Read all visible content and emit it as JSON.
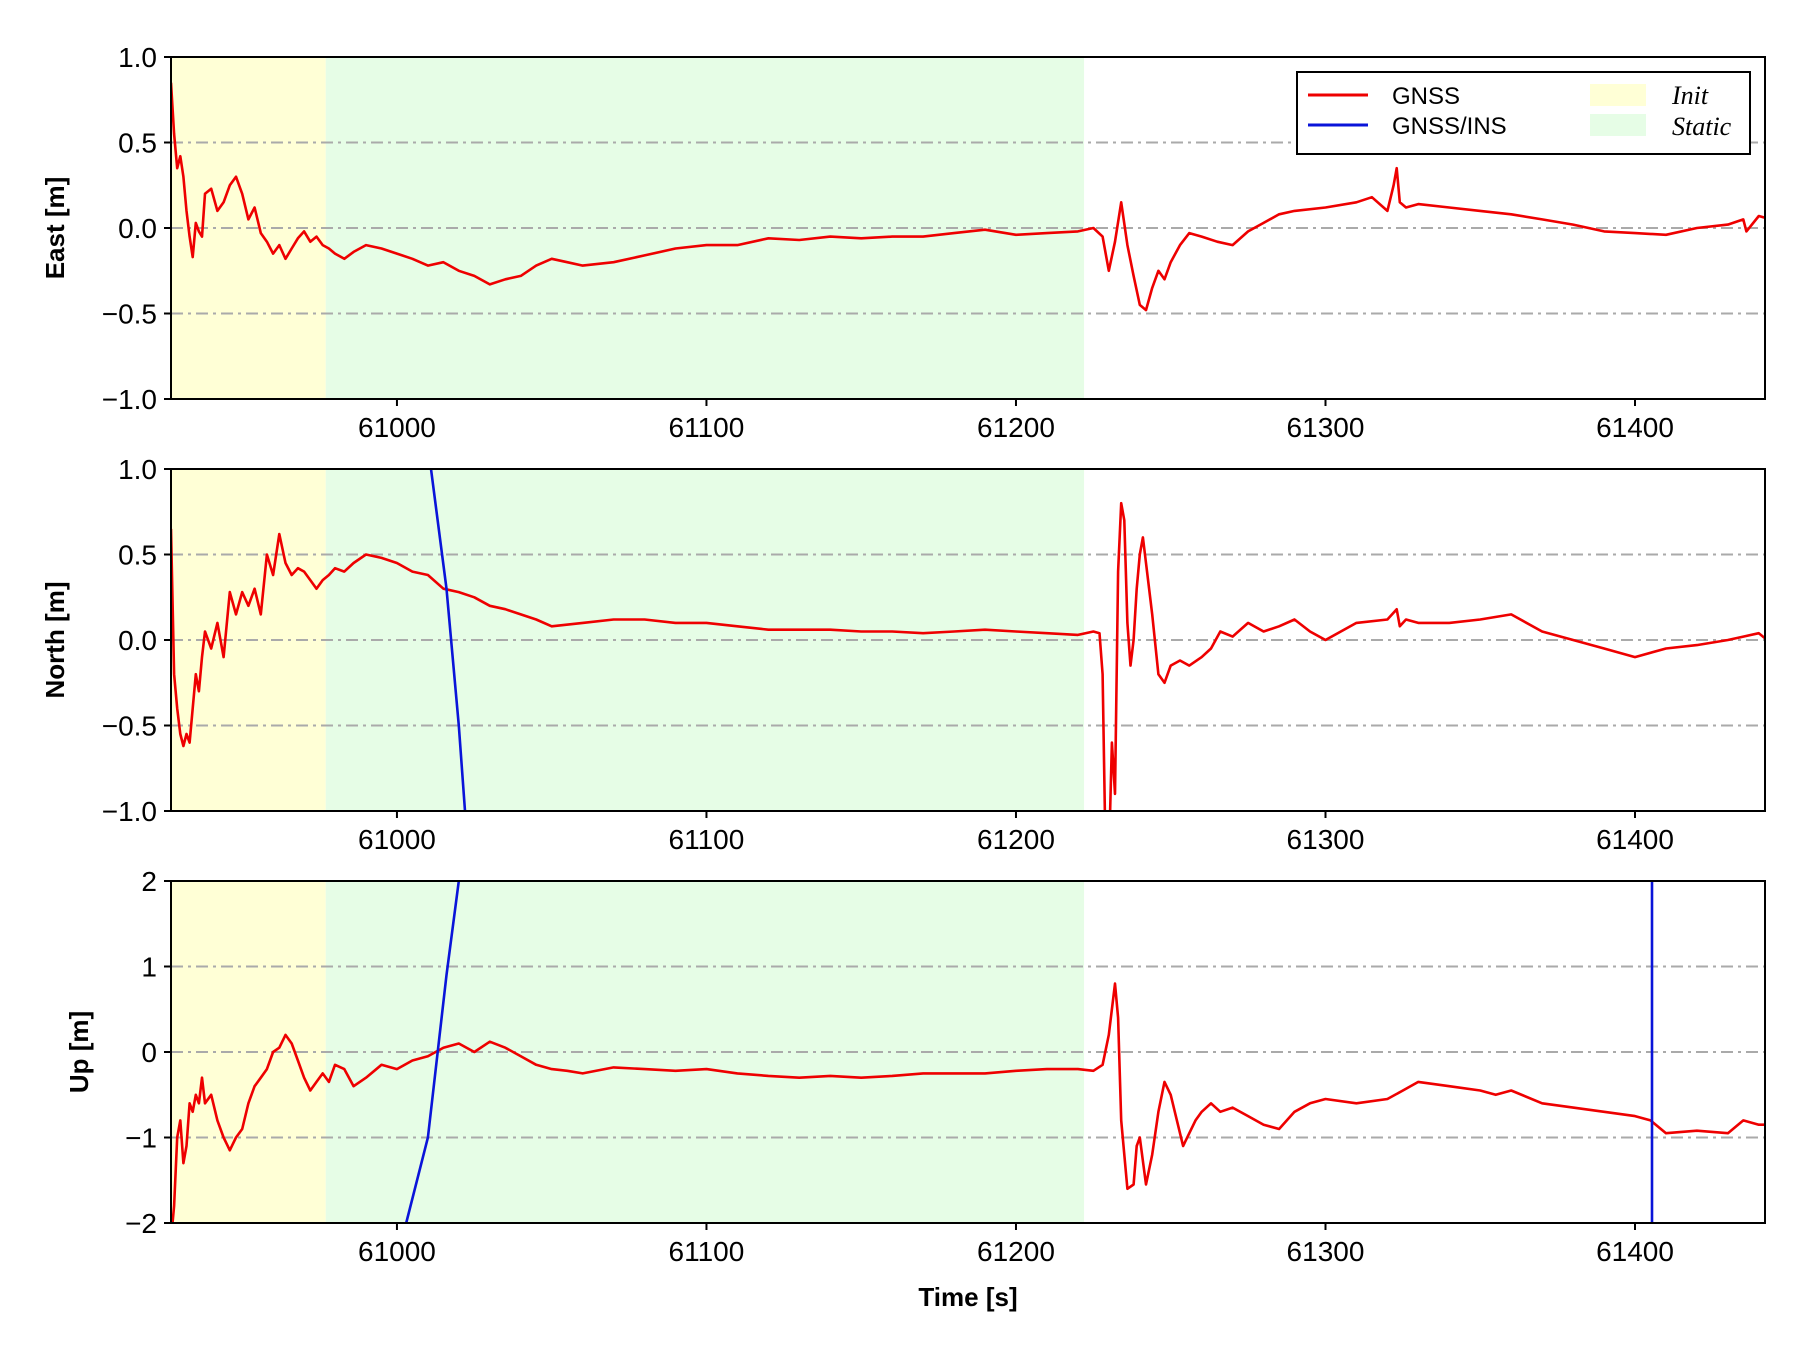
{
  "chart_data": {
    "type": "line",
    "xlabel": "Time [s]",
    "xlim": [
      60927,
      61442
    ],
    "xticks": [
      61000,
      61100,
      61200,
      61300,
      61400
    ],
    "regions": [
      {
        "name": "Init",
        "x": [
          60927,
          60977
        ],
        "color": "#ffffd6"
      },
      {
        "name": "Static",
        "x": [
          60977,
          61222
        ],
        "color": "#e6fde6"
      }
    ],
    "legend": {
      "position": "top-right",
      "entries": [
        {
          "label": "GNSS",
          "kind": "line",
          "color": "#ee0000"
        },
        {
          "label": "GNSS/INS",
          "kind": "line",
          "color": "#0a14d9"
        },
        {
          "label": "Init",
          "kind": "patch",
          "color": "#ffffd6"
        },
        {
          "label": "Static",
          "kind": "patch",
          "color": "#e6fde6"
        }
      ]
    },
    "grid": "horizontal dash-dot",
    "panels": [
      {
        "ylabel": "East [m]",
        "ylim": [
          -1.0,
          1.0
        ],
        "yticks": [
          1.0,
          0.5,
          0.0,
          -0.5,
          -1.0
        ],
        "ytick_labels": [
          "1.0",
          "0.5",
          "0.0",
          "−0.5",
          "−1.0"
        ],
        "gridlines": [
          0.5,
          0.0,
          -0.5
        ],
        "series": [
          {
            "name": "GNSS",
            "color": "#ee0000",
            "x": [
              60927,
              60928,
              60929,
              60930,
              60931,
              60932,
              60933,
              60934,
              60935,
              60936,
              60937,
              60938,
              60940,
              60942,
              60944,
              60946,
              60948,
              60950,
              60952,
              60954,
              60956,
              60958,
              60960,
              60962,
              60964,
              60966,
              60968,
              60970,
              60972,
              60974,
              60976,
              60978,
              60980,
              60983,
              60986,
              60990,
              60995,
              61000,
              61005,
              61010,
              61015,
              61020,
              61025,
              61030,
              61035,
              61040,
              61045,
              61050,
              61055,
              61060,
              61070,
              61080,
              61090,
              61100,
              61110,
              61120,
              61130,
              61140,
              61150,
              61160,
              61170,
              61180,
              61190,
              61200,
              61210,
              61220,
              61225,
              61228,
              61230,
              61232,
              61234,
              61236,
              61238,
              61240,
              61242,
              61244,
              61246,
              61248,
              61250,
              61253,
              61256,
              61260,
              61265,
              61270,
              61275,
              61280,
              61285,
              61290,
              61300,
              61310,
              61315,
              61320,
              61322,
              61323,
              61324,
              61326,
              61330,
              61340,
              61350,
              61360,
              61370,
              61380,
              61390,
              61400,
              61410,
              61420,
              61430,
              61435,
              61436,
              61440,
              61442
            ],
            "y": [
              0.85,
              0.55,
              0.35,
              0.42,
              0.3,
              0.1,
              -0.05,
              -0.17,
              0.03,
              -0.02,
              -0.05,
              0.2,
              0.23,
              0.1,
              0.15,
              0.25,
              0.3,
              0.2,
              0.05,
              0.12,
              -0.03,
              -0.08,
              -0.15,
              -0.1,
              -0.18,
              -0.12,
              -0.06,
              -0.02,
              -0.08,
              -0.05,
              -0.1,
              -0.12,
              -0.15,
              -0.18,
              -0.14,
              -0.1,
              -0.12,
              -0.15,
              -0.18,
              -0.22,
              -0.2,
              -0.25,
              -0.28,
              -0.33,
              -0.3,
              -0.28,
              -0.22,
              -0.18,
              -0.2,
              -0.22,
              -0.2,
              -0.16,
              -0.12,
              -0.1,
              -0.1,
              -0.06,
              -0.07,
              -0.05,
              -0.06,
              -0.05,
              -0.05,
              -0.03,
              -0.01,
              -0.04,
              -0.03,
              -0.02,
              0.0,
              -0.05,
              -0.25,
              -0.08,
              0.15,
              -0.1,
              -0.28,
              -0.45,
              -0.48,
              -0.35,
              -0.25,
              -0.3,
              -0.2,
              -0.1,
              -0.03,
              -0.05,
              -0.08,
              -0.1,
              -0.02,
              0.03,
              0.08,
              0.1,
              0.12,
              0.15,
              0.18,
              0.1,
              0.25,
              0.35,
              0.15,
              0.12,
              0.14,
              0.12,
              0.1,
              0.08,
              0.05,
              0.02,
              -0.02,
              -0.03,
              -0.04,
              0.0,
              0.02,
              0.05,
              -0.02,
              0.07,
              0.06
            ]
          }
        ]
      },
      {
        "ylabel": "North [m]",
        "ylim": [
          -1.0,
          1.0
        ],
        "yticks": [
          1.0,
          0.5,
          0.0,
          -0.5,
          -1.0
        ],
        "ytick_labels": [
          "1.0",
          "0.5",
          "0.0",
          "−0.5",
          "−1.0"
        ],
        "gridlines": [
          0.5,
          0.0,
          -0.5
        ],
        "series": [
          {
            "name": "GNSS",
            "color": "#ee0000",
            "x": [
              60927,
              60928,
              60929,
              60930,
              60931,
              60932,
              60933,
              60934,
              60935,
              60936,
              60937,
              60938,
              60940,
              60942,
              60944,
              60946,
              60948,
              60950,
              60952,
              60954,
              60956,
              60958,
              60960,
              60962,
              60964,
              60966,
              60968,
              60970,
              60972,
              60974,
              60976,
              60978,
              60980,
              60983,
              60986,
              60990,
              60995,
              61000,
              61005,
              61010,
              61015,
              61020,
              61025,
              61030,
              61035,
              61040,
              61045,
              61050,
              61060,
              61070,
              61080,
              61090,
              61100,
              61110,
              61120,
              61130,
              61140,
              61150,
              61160,
              61170,
              61180,
              61190,
              61200,
              61210,
              61220,
              61225,
              61227,
              61228,
              61229,
              61230,
              61231,
              61232,
              61233,
              61234,
              61235,
              61236,
              61237,
              61238,
              61239,
              61240,
              61241,
              61242,
              61243,
              61244,
              61246,
              61248,
              61250,
              61253,
              61256,
              61260,
              61263,
              61266,
              61270,
              61275,
              61280,
              61285,
              61290,
              61295,
              61300,
              61310,
              61320,
              61323,
              61324,
              61326,
              61330,
              61340,
              61350,
              61360,
              61370,
              61380,
              61390,
              61400,
              61410,
              61420,
              61430,
              61435,
              61440,
              61442
            ],
            "y": [
              0.65,
              -0.2,
              -0.4,
              -0.55,
              -0.62,
              -0.55,
              -0.6,
              -0.4,
              -0.2,
              -0.3,
              -0.1,
              0.05,
              -0.05,
              0.1,
              -0.1,
              0.28,
              0.15,
              0.28,
              0.2,
              0.3,
              0.15,
              0.5,
              0.38,
              0.62,
              0.45,
              0.38,
              0.42,
              0.4,
              0.35,
              0.3,
              0.35,
              0.38,
              0.42,
              0.4,
              0.45,
              0.5,
              0.48,
              0.45,
              0.4,
              0.38,
              0.3,
              0.28,
              0.25,
              0.2,
              0.18,
              0.15,
              0.12,
              0.08,
              0.1,
              0.12,
              0.12,
              0.1,
              0.1,
              0.08,
              0.06,
              0.06,
              0.06,
              0.05,
              0.05,
              0.04,
              0.05,
              0.06,
              0.05,
              0.04,
              0.03,
              0.05,
              0.04,
              -0.2,
              -1.3,
              -1.3,
              -0.6,
              -0.9,
              0.4,
              0.8,
              0.7,
              0.1,
              -0.15,
              0.0,
              0.3,
              0.5,
              0.6,
              0.45,
              0.3,
              0.15,
              -0.2,
              -0.25,
              -0.15,
              -0.12,
              -0.15,
              -0.1,
              -0.05,
              0.05,
              0.02,
              0.1,
              0.05,
              0.08,
              0.12,
              0.05,
              0.0,
              0.1,
              0.12,
              0.18,
              0.08,
              0.12,
              0.1,
              0.1,
              0.12,
              0.15,
              0.05,
              0.0,
              -0.05,
              -0.1,
              -0.05,
              -0.03,
              0.0,
              0.02,
              0.04,
              0.01
            ]
          },
          {
            "name": "GNSS/INS",
            "color": "#0a14d9",
            "x": [
              61011,
              61016,
              61020,
              61022
            ],
            "y": [
              1.0,
              0.3,
              -0.5,
              -1.0
            ]
          }
        ]
      },
      {
        "ylabel": "Up [m]",
        "ylim": [
          -2,
          2
        ],
        "yticks": [
          2,
          1,
          0,
          -1,
          -2
        ],
        "ytick_labels": [
          "2",
          "1",
          "0",
          "−1",
          "−2"
        ],
        "gridlines": [
          1,
          0,
          -1
        ],
        "series": [
          {
            "name": "GNSS",
            "color": "#ee0000",
            "x": [
              60927,
              60928,
              60929,
              60930,
              60931,
              60932,
              60933,
              60934,
              60935,
              60936,
              60937,
              60938,
              60940,
              60942,
              60944,
              60946,
              60948,
              60950,
              60952,
              60954,
              60956,
              60958,
              60960,
              60962,
              60964,
              60966,
              60968,
              60970,
              60972,
              60974,
              60976,
              60978,
              60980,
              60983,
              60986,
              60990,
              60995,
              61000,
              61005,
              61010,
              61015,
              61020,
              61025,
              61030,
              61035,
              61040,
              61045,
              61050,
              61055,
              61060,
              61070,
              61080,
              61090,
              61100,
              61110,
              61120,
              61130,
              61140,
              61150,
              61160,
              61170,
              61180,
              61190,
              61200,
              61210,
              61220,
              61225,
              61228,
              61230,
              61232,
              61233,
              61234,
              61236,
              61238,
              61239,
              61240,
              61242,
              61244,
              61246,
              61248,
              61250,
              61252,
              61254,
              61256,
              61258,
              61260,
              61263,
              61266,
              61270,
              61275,
              61280,
              61285,
              61290,
              61295,
              61300,
              61310,
              61320,
              61325,
              61330,
              61340,
              61350,
              61355,
              61360,
              61370,
              61380,
              61390,
              61400,
              61405,
              61410,
              61420,
              61430,
              61435,
              61440,
              61442
            ],
            "y": [
              -2.2,
              -1.8,
              -1.0,
              -0.8,
              -1.3,
              -1.1,
              -0.6,
              -0.7,
              -0.5,
              -0.6,
              -0.3,
              -0.6,
              -0.5,
              -0.8,
              -1.0,
              -1.15,
              -1.0,
              -0.9,
              -0.6,
              -0.4,
              -0.3,
              -0.2,
              0.0,
              0.05,
              0.2,
              0.1,
              -0.1,
              -0.3,
              -0.45,
              -0.35,
              -0.25,
              -0.35,
              -0.15,
              -0.2,
              -0.4,
              -0.3,
              -0.15,
              -0.2,
              -0.1,
              -0.05,
              0.05,
              0.1,
              0.0,
              0.12,
              0.05,
              -0.05,
              -0.15,
              -0.2,
              -0.22,
              -0.25,
              -0.18,
              -0.2,
              -0.22,
              -0.2,
              -0.25,
              -0.28,
              -0.3,
              -0.28,
              -0.3,
              -0.28,
              -0.25,
              -0.25,
              -0.25,
              -0.22,
              -0.2,
              -0.2,
              -0.22,
              -0.15,
              0.2,
              0.8,
              0.4,
              -0.8,
              -1.6,
              -1.55,
              -1.1,
              -1.0,
              -1.55,
              -1.2,
              -0.7,
              -0.35,
              -0.5,
              -0.8,
              -1.1,
              -0.95,
              -0.8,
              -0.7,
              -0.6,
              -0.7,
              -0.65,
              -0.75,
              -0.85,
              -0.9,
              -0.7,
              -0.6,
              -0.55,
              -0.6,
              -0.55,
              -0.45,
              -0.35,
              -0.4,
              -0.45,
              -0.5,
              -0.45,
              -0.6,
              -0.65,
              -0.7,
              -0.75,
              -0.8,
              -0.95,
              -0.92,
              -0.95,
              -0.8,
              -0.85,
              -0.85
            ]
          },
          {
            "name": "GNSS/INS",
            "color": "#0a14d9",
            "x": [
              61003,
              61010,
              61016,
              61020
            ],
            "y": [
              -2.0,
              -1.0,
              0.9,
              2.0
            ]
          },
          {
            "name": "GNSS/INS",
            "color": "#0a14d9",
            "x": [
              61405.5,
              61405.5
            ],
            "y": [
              2.0,
              -2.0
            ]
          }
        ]
      }
    ]
  }
}
